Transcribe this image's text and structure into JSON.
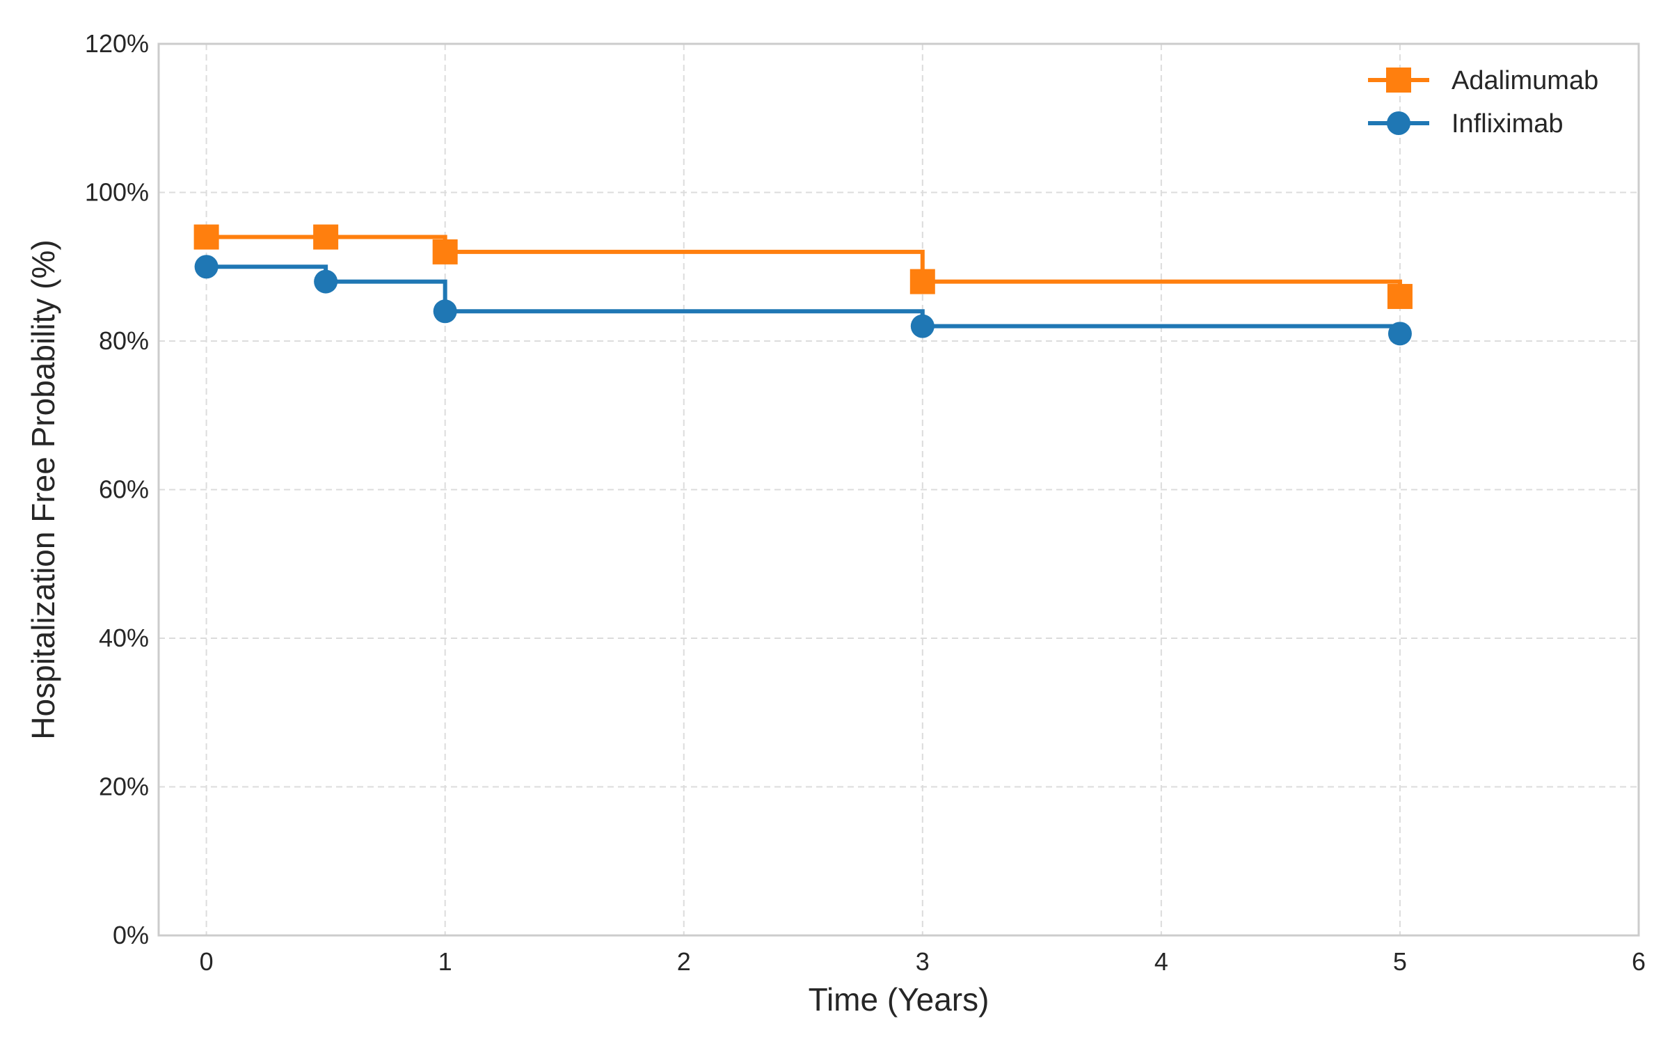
{
  "chart_data": {
    "type": "line",
    "step": "post",
    "title": "",
    "xlabel": "Time (Years)",
    "ylabel": "Hospitalization Free Probability (%)",
    "xlim": [
      -0.2,
      6
    ],
    "ylim": [
      0,
      120
    ],
    "xticks": [
      0,
      1,
      2,
      3,
      4,
      5,
      6
    ],
    "xtick_labels": [
      "0",
      "1",
      "2",
      "3",
      "4",
      "5",
      "6"
    ],
    "yticks": [
      0,
      20,
      40,
      60,
      80,
      100,
      120
    ],
    "ytick_labels": [
      "0%",
      "20%",
      "40%",
      "60%",
      "80%",
      "100%",
      "120%"
    ],
    "grid": true,
    "legend_position": "top-right",
    "series": [
      {
        "name": "Adalimumab",
        "color": "#ff7f0e",
        "marker": "square",
        "x": [
          0,
          0.5,
          1,
          3,
          5
        ],
        "y": [
          94,
          94,
          92,
          88,
          86
        ]
      },
      {
        "name": "Infliximab",
        "color": "#1f77b4",
        "marker": "circle",
        "x": [
          0,
          0.5,
          1,
          3,
          5
        ],
        "y": [
          90,
          88,
          84,
          82,
          81
        ]
      }
    ]
  }
}
